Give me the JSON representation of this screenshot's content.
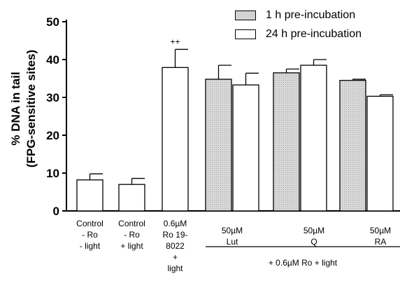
{
  "chart_data": {
    "type": "bar",
    "ylabel": [
      "% DNA in tail",
      "(FPG-sensitive sites)"
    ],
    "ylim": [
      0,
      50
    ],
    "yticks": [
      0,
      10,
      20,
      30,
      40,
      50
    ],
    "legend": {
      "placement": "top-right",
      "entries": [
        {
          "label": "1 h pre-incubation",
          "fill": "#d3d3d3"
        },
        {
          "label": "24 h pre-incubation",
          "fill": "#ffffff"
        }
      ]
    },
    "bars": [
      {
        "label_lines": [
          "Control",
          "- Ro",
          "- light"
        ],
        "value": 8.2,
        "error": 1.6,
        "fill": "#ffffff"
      },
      {
        "label_lines": [
          "Control",
          "- Ro",
          "+ light"
        ],
        "value": 7.0,
        "error": 1.6,
        "fill": "#ffffff"
      },
      {
        "label_lines": [
          "0.6µM",
          "Ro 19-",
          "8022",
          "+",
          "light"
        ],
        "value": 37.9,
        "error": 4.8,
        "fill": "#ffffff",
        "annotation": "++"
      },
      {
        "group": "50µM Lut",
        "series": "1 h pre-incubation",
        "value": 34.8,
        "error": 3.7,
        "fill": "#d3d3d3"
      },
      {
        "group": "50µM Lut",
        "series": "24 h pre-incubation",
        "value": 33.3,
        "error": 3.1,
        "fill": "#ffffff"
      },
      {
        "group": "50µM Q",
        "series": "1 h pre-incubation",
        "value": 36.5,
        "error": 1.0,
        "fill": "#d3d3d3"
      },
      {
        "group": "50µM Q",
        "series": "24 h pre-incubation",
        "value": 38.5,
        "error": 1.5,
        "fill": "#ffffff"
      },
      {
        "group": "50µM RA",
        "series": "1 h pre-incubation",
        "value": 34.5,
        "error": 0.3,
        "fill": "#d3d3d3"
      },
      {
        "group": "50µM RA",
        "series": "24 h pre-incubation",
        "value": 30.3,
        "error": 0.4,
        "fill": "#ffffff"
      }
    ],
    "group_labels": [
      {
        "lines": [
          "50µM",
          "Lut"
        ]
      },
      {
        "lines": [
          "50µM",
          "Q"
        ]
      },
      {
        "lines": [
          "50µM",
          "RA"
        ]
      }
    ],
    "bracket_label": "+ 0.6µM Ro + light"
  }
}
